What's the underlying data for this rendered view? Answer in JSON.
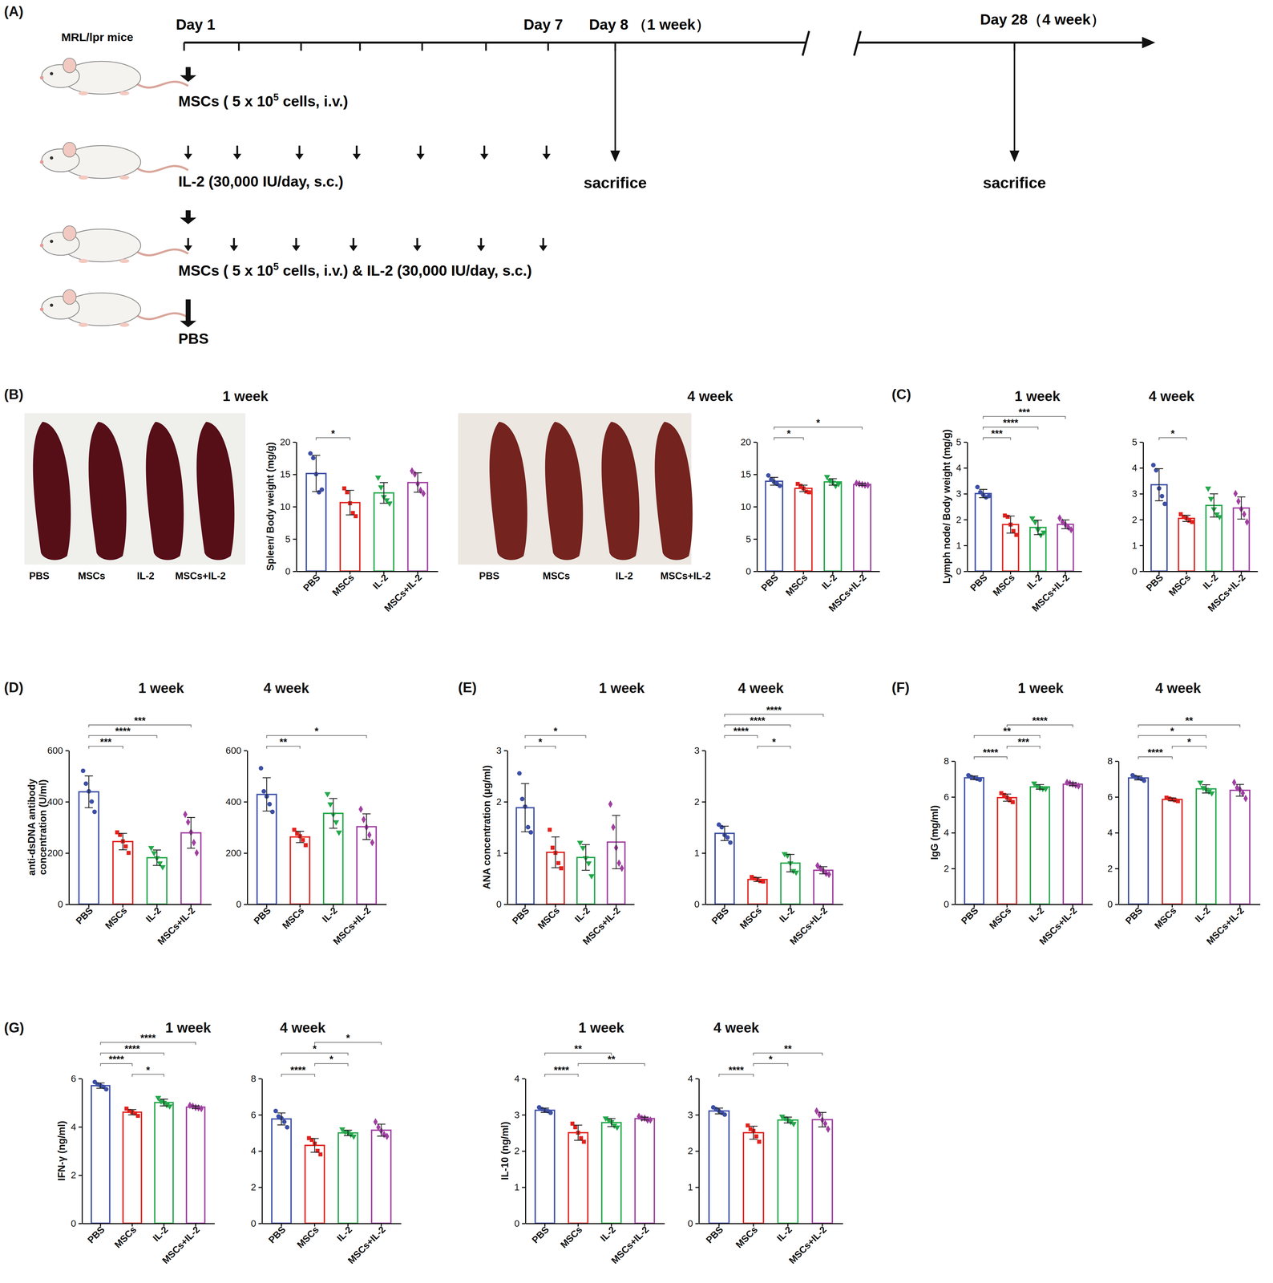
{
  "panel_labels": [
    "(A)",
    "(B)",
    "(C)",
    "(D)",
    "(E)",
    "(F)",
    "(G)"
  ],
  "diagram": {
    "subject": "MRL/lpr mice",
    "days": [
      "Day 1",
      "Day 7",
      "Day 8 （1 week）",
      "Day 28（4 week）"
    ],
    "treatments": [
      {
        "parts": [
          "MSCs ( 5 x 10",
          "5",
          " cells, i.v.)"
        ]
      },
      {
        "parts": [
          "IL-2 (30,000 IU/day, s.c.)"
        ]
      },
      {
        "parts": [
          "MSCs ( 5 x 10",
          "5",
          " cells, i.v.) & IL-2 (30,000 IU/day, s.c.)"
        ]
      },
      {
        "parts": [
          "PBS"
        ]
      }
    ],
    "endpoints": [
      "sacrifice",
      "sacrifice"
    ]
  },
  "photos": [
    {
      "labels": [
        "PBS",
        "MSCs",
        "IL-2",
        "MSCs+IL-2"
      ]
    },
    {
      "labels": [
        "PBS",
        "MSCs",
        "IL-2",
        "MSCs+IL-2"
      ]
    }
  ],
  "chart_data": [
    {
      "type": "bar",
      "title": "1 week",
      "ylabel": "Spleen/ Body weight (mg/g)",
      "categories": [
        "PBS",
        "MSCs",
        "IL-2",
        "MSCs+IL-2"
      ],
      "values": [
        15.1,
        10.6,
        12.1,
        13.7
      ],
      "errors": [
        2.8,
        1.9,
        1.6,
        1.5
      ],
      "points": [
        [
          18.2,
          17.5,
          15,
          12.2,
          12.6
        ],
        [
          12.8,
          12.2,
          10.5,
          9,
          8.5
        ],
        [
          14.5,
          13,
          11.5,
          11,
          10.5
        ],
        [
          15.5,
          15,
          13.5,
          12.5,
          12
        ]
      ],
      "significance": [
        {
          "from": 0,
          "to": 1,
          "label": "*"
        }
      ],
      "colors": [
        "#3d4fa6",
        "#e3211c",
        "#24a84b",
        "#a03fa1"
      ],
      "ylim": [
        0,
        20
      ],
      "yticks": [
        0,
        5,
        10,
        15,
        20
      ]
    },
    {
      "type": "bar",
      "title": "4 week",
      "categories": [
        "PBS",
        "MSCs",
        "IL-2",
        "MSCs+IL-2"
      ],
      "values": [
        13.9,
        12.8,
        13.8,
        13.4
      ],
      "errors": [
        0.6,
        0.5,
        0.5,
        0.15
      ],
      "points": [
        [
          14.8,
          14.2,
          13.8,
          13.5,
          13.2
        ],
        [
          13.5,
          13.2,
          12.8,
          12.3,
          12.2
        ],
        [
          14.6,
          14,
          13.7,
          13.2,
          13.5
        ],
        [
          13.6,
          13.5,
          13.4,
          13.3,
          13.3
        ]
      ],
      "significance": [
        {
          "from": 0,
          "to": 1,
          "label": "*"
        },
        {
          "from": 0,
          "to": 3,
          "label": "*"
        }
      ],
      "colors": [
        "#3d4fa6",
        "#e3211c",
        "#24a84b",
        "#a03fa1"
      ],
      "ylim": [
        0,
        20
      ],
      "yticks": [
        0,
        5,
        10,
        15,
        20
      ]
    },
    {
      "type": "bar",
      "title": "1 week",
      "ylabel": "Lymph node/ Body weight (mg/g)",
      "categories": [
        "PBS",
        "MSCs",
        "IL-2",
        "MSCs+IL-2"
      ],
      "values": [
        3.0,
        1.8,
        1.69,
        1.81
      ],
      "errors": [
        0.16,
        0.33,
        0.28,
        0.17
      ],
      "points": [
        [
          3.25,
          3.05,
          2.95,
          2.85,
          2.9
        ],
        [
          2.15,
          2.1,
          1.8,
          1.55,
          1.4
        ],
        [
          2.05,
          1.9,
          1.6,
          1.4,
          1.5
        ],
        [
          2.05,
          1.9,
          1.8,
          1.7,
          1.6
        ]
      ],
      "significance": [
        {
          "from": 0,
          "to": 1,
          "label": "***"
        },
        {
          "from": 0,
          "to": 2,
          "label": "****"
        },
        {
          "from": 0,
          "to": 3,
          "label": "***"
        }
      ],
      "colors": [
        "#3d4fa6",
        "#e3211c",
        "#24a84b",
        "#a03fa1"
      ],
      "ylim": [
        0,
        5
      ],
      "yticks": [
        0,
        1,
        2,
        3,
        4,
        5
      ]
    },
    {
      "type": "bar",
      "title": "4 week",
      "categories": [
        "PBS",
        "MSCs",
        "IL-2",
        "MSCs+IL-2"
      ],
      "values": [
        3.34,
        2.04,
        2.54,
        2.44
      ],
      "errors": [
        0.62,
        0.12,
        0.45,
        0.43
      ],
      "points": [
        [
          4.1,
          3.9,
          3.2,
          2.9,
          2.6
        ],
        [
          2.2,
          2.1,
          2.05,
          1.95,
          1.9
        ],
        [
          3.2,
          2.8,
          2.4,
          2.2,
          2.1
        ],
        [
          3.0,
          2.7,
          2.4,
          2.2,
          1.9
        ]
      ],
      "significance": [
        {
          "from": 0,
          "to": 1,
          "label": "*"
        }
      ],
      "colors": [
        "#3d4fa6",
        "#e3211c",
        "#24a84b",
        "#a03fa1"
      ],
      "ylim": [
        0,
        5
      ],
      "yticks": [
        0,
        1,
        2,
        3,
        4,
        5
      ]
    },
    {
      "type": "bar",
      "title": "1 week",
      "ylabel": "anti-dsDNA antibody\nconcentration (U/ml)",
      "categories": [
        "PBS",
        "MSCs",
        "IL-2",
        "MSCs+IL-2"
      ],
      "values": [
        438,
        244,
        181,
        278
      ],
      "errors": [
        62,
        32,
        30,
        60
      ],
      "points": [
        [
          520,
          470,
          440,
          400,
          360
        ],
        [
          280,
          270,
          245,
          225,
          200
        ],
        [
          220,
          200,
          180,
          160,
          145
        ],
        [
          350,
          320,
          280,
          240,
          200
        ]
      ],
      "significance": [
        {
          "from": 0,
          "to": 1,
          "label": "***"
        },
        {
          "from": 0,
          "to": 2,
          "label": "****"
        },
        {
          "from": 0,
          "to": 3,
          "label": "***"
        }
      ],
      "colors": [
        "#3d4fa6",
        "#e3211c",
        "#24a84b",
        "#a03fa1"
      ],
      "ylim": [
        0,
        600
      ],
      "yticks": [
        0,
        200,
        400,
        600
      ]
    },
    {
      "type": "bar",
      "title": "4 week",
      "categories": [
        "PBS",
        "MSCs",
        "IL-2",
        "MSCs+IL-2"
      ],
      "values": [
        428,
        262,
        354,
        302
      ],
      "errors": [
        65,
        22,
        58,
        50
      ],
      "points": [
        [
          530,
          440,
          420,
          390,
          360
        ],
        [
          290,
          275,
          265,
          250,
          230
        ],
        [
          430,
          390,
          350,
          320,
          280
        ],
        [
          370,
          330,
          300,
          270,
          240
        ]
      ],
      "significance": [
        {
          "from": 0,
          "to": 1,
          "label": "**"
        },
        {
          "from": 0,
          "to": 3,
          "label": "*"
        }
      ],
      "colors": [
        "#3d4fa6",
        "#e3211c",
        "#24a84b",
        "#a03fa1"
      ],
      "ylim": [
        0,
        600
      ],
      "yticks": [
        0,
        200,
        400,
        600
      ]
    },
    {
      "type": "bar",
      "title": "1 week",
      "ylabel": "ANA concentration (μg/ml)",
      "categories": [
        "PBS",
        "MSCs",
        "IL-2",
        "MSCs+IL-2"
      ],
      "values": [
        1.88,
        1.01,
        0.91,
        1.21
      ],
      "errors": [
        0.47,
        0.3,
        0.25,
        0.52
      ],
      "points": [
        [
          2.55,
          2.05,
          1.9,
          1.5,
          1.4
        ],
        [
          1.45,
          1.1,
          1.0,
          0.8,
          0.7
        ],
        [
          1.2,
          1.1,
          0.9,
          0.8,
          0.55
        ],
        [
          1.95,
          1.5,
          1.1,
          0.8,
          0.7
        ]
      ],
      "significance": [
        {
          "from": 0,
          "to": 1,
          "label": "*"
        },
        {
          "from": 0,
          "to": 2,
          "label": "*"
        }
      ],
      "colors": [
        "#3d4fa6",
        "#e3211c",
        "#24a84b",
        "#a03fa1"
      ],
      "ylim": [
        0,
        3
      ],
      "yticks": [
        0,
        1,
        2,
        3
      ]
    },
    {
      "type": "bar",
      "title": "4 week",
      "categories": [
        "PBS",
        "MSCs",
        "IL-2",
        "MSCs+IL-2"
      ],
      "values": [
        1.38,
        0.48,
        0.8,
        0.66
      ],
      "errors": [
        0.14,
        0.04,
        0.17,
        0.07
      ],
      "points": [
        [
          1.55,
          1.5,
          1.35,
          1.3,
          1.2
        ],
        [
          0.53,
          0.5,
          0.48,
          0.45,
          0.44
        ],
        [
          0.98,
          0.95,
          0.8,
          0.65,
          0.62
        ],
        [
          0.75,
          0.7,
          0.65,
          0.6,
          0.58
        ]
      ],
      "significance": [
        {
          "from": 1,
          "to": 2,
          "label": "*"
        },
        {
          "from": 0,
          "to": 1,
          "label": "****"
        },
        {
          "from": 0,
          "to": 2,
          "label": "****"
        },
        {
          "from": 0,
          "to": 3,
          "label": "****"
        }
      ],
      "colors": [
        "#3d4fa6",
        "#e3211c",
        "#24a84b",
        "#a03fa1"
      ],
      "ylim": [
        0,
        3
      ],
      "yticks": [
        0,
        1,
        2,
        3
      ]
    },
    {
      "type": "bar",
      "title": "1 week",
      "ylabel": "IgG (mg/ml)",
      "categories": [
        "PBS",
        "MSCs",
        "IL-2",
        "MSCs+IL-2"
      ],
      "values": [
        7.06,
        5.95,
        6.55,
        6.7
      ],
      "errors": [
        0.1,
        0.2,
        0.13,
        0.08
      ],
      "points": [
        [
          7.2,
          7.1,
          7.05,
          7.0,
          6.95
        ],
        [
          6.2,
          6.1,
          5.95,
          5.8,
          5.7
        ],
        [
          6.75,
          6.6,
          6.5,
          6.45,
          6.45
        ],
        [
          6.8,
          6.75,
          6.7,
          6.65,
          6.6
        ]
      ],
      "significance": [
        {
          "from": 0,
          "to": 1,
          "label": "****"
        },
        {
          "from": 1,
          "to": 2,
          "label": "***"
        },
        {
          "from": 0,
          "to": 2,
          "label": "**"
        },
        {
          "from": 1,
          "to": 3,
          "label": "****"
        }
      ],
      "colors": [
        "#3d4fa6",
        "#e3211c",
        "#24a84b",
        "#a03fa1"
      ],
      "ylim": [
        0,
        8
      ],
      "yticks": [
        0,
        2,
        4,
        6,
        8
      ]
    },
    {
      "type": "bar",
      "title": "4 week",
      "categories": [
        "PBS",
        "MSCs",
        "IL-2",
        "MSCs+IL-2"
      ],
      "values": [
        7.05,
        5.85,
        6.44,
        6.36
      ],
      "errors": [
        0.11,
        0.08,
        0.23,
        0.33
      ],
      "points": [
        [
          7.2,
          7.1,
          7.05,
          7.0,
          6.9
        ],
        [
          5.95,
          5.9,
          5.85,
          5.8,
          5.75
        ],
        [
          6.8,
          6.5,
          6.4,
          6.3,
          6.2
        ],
        [
          6.8,
          6.5,
          6.4,
          6.2,
          5.9
        ]
      ],
      "significance": [
        {
          "from": 0,
          "to": 1,
          "label": "****"
        },
        {
          "from": 1,
          "to": 2,
          "label": "*"
        },
        {
          "from": 0,
          "to": 2,
          "label": "*"
        },
        {
          "from": 0,
          "to": 3,
          "label": "**"
        }
      ],
      "colors": [
        "#3d4fa6",
        "#e3211c",
        "#24a84b",
        "#a03fa1"
      ],
      "ylim": [
        0,
        8
      ],
      "yticks": [
        0,
        2,
        4,
        6,
        8
      ]
    },
    {
      "type": "bar",
      "title": "1 week",
      "ylabel": "IFN-γ (ng/ml)",
      "categories": [
        "PBS",
        "MSCs",
        "IL-2",
        "MSCs+IL-2"
      ],
      "values": [
        5.7,
        4.6,
        5.0,
        4.81
      ],
      "errors": [
        0.11,
        0.11,
        0.14,
        0.05
      ],
      "points": [
        [
          5.85,
          5.75,
          5.7,
          5.65,
          5.55
        ],
        [
          4.75,
          4.65,
          4.6,
          4.55,
          4.45
        ],
        [
          5.2,
          5.05,
          5.0,
          4.9,
          4.85
        ],
        [
          4.88,
          4.85,
          4.8,
          4.78,
          4.75
        ]
      ],
      "significance": [
        {
          "from": 1,
          "to": 2,
          "label": "*"
        },
        {
          "from": 0,
          "to": 1,
          "label": "****"
        },
        {
          "from": 0,
          "to": 2,
          "label": "****"
        },
        {
          "from": 0,
          "to": 3,
          "label": "****"
        }
      ],
      "colors": [
        "#3d4fa6",
        "#e3211c",
        "#24a84b",
        "#a03fa1"
      ],
      "ylim": [
        0,
        6
      ],
      "yticks": [
        0,
        2,
        4,
        6
      ]
    },
    {
      "type": "bar",
      "title": "4 week",
      "categories": [
        "PBS",
        "MSCs",
        "IL-2",
        "MSCs+IL-2"
      ],
      "values": [
        5.76,
        4.3,
        4.99,
        5.14
      ],
      "errors": [
        0.33,
        0.38,
        0.15,
        0.33
      ],
      "points": [
        [
          6.2,
          5.9,
          5.8,
          5.6,
          5.3
        ],
        [
          4.7,
          4.6,
          4.4,
          4.0,
          3.8
        ],
        [
          5.2,
          5.05,
          5.0,
          4.9,
          4.8
        ],
        [
          5.6,
          5.3,
          5.1,
          4.9,
          4.8
        ]
      ],
      "significance": [
        {
          "from": 0,
          "to": 1,
          "label": "****"
        },
        {
          "from": 1,
          "to": 2,
          "label": "*"
        },
        {
          "from": 0,
          "to": 2,
          "label": "*"
        },
        {
          "from": 1,
          "to": 3,
          "label": "*"
        }
      ],
      "colors": [
        "#3d4fa6",
        "#e3211c",
        "#24a84b",
        "#a03fa1"
      ],
      "ylim": [
        0,
        8
      ],
      "yticks": [
        0,
        2,
        4,
        6,
        8
      ]
    },
    {
      "type": "bar",
      "title": "1 week",
      "ylabel": "IL-10 (ng/ml)",
      "categories": [
        "PBS",
        "MSCs",
        "IL-2",
        "MSCs+IL-2"
      ],
      "values": [
        3.12,
        2.5,
        2.78,
        2.89
      ],
      "errors": [
        0.06,
        0.21,
        0.11,
        0.04
      ],
      "points": [
        [
          3.2,
          3.15,
          3.12,
          3.1,
          3.05
        ],
        [
          2.75,
          2.65,
          2.5,
          2.35,
          2.25
        ],
        [
          2.9,
          2.85,
          2.8,
          2.7,
          2.65
        ],
        [
          2.95,
          2.9,
          2.9,
          2.85,
          2.85
        ]
      ],
      "significance": [
        {
          "from": 0,
          "to": 1,
          "label": "****"
        },
        {
          "from": 1,
          "to": 3,
          "label": "**"
        },
        {
          "from": 0,
          "to": 2,
          "label": "**"
        }
      ],
      "colors": [
        "#3d4fa6",
        "#e3211c",
        "#24a84b",
        "#a03fa1"
      ],
      "ylim": [
        0,
        4
      ],
      "yticks": [
        0,
        1,
        2,
        3,
        4
      ]
    },
    {
      "type": "bar",
      "title": "4 week",
      "categories": [
        "PBS",
        "MSCs",
        "IL-2",
        "MSCs+IL-2"
      ],
      "values": [
        3.1,
        2.5,
        2.85,
        2.86
      ],
      "errors": [
        0.08,
        0.18,
        0.08,
        0.2
      ],
      "points": [
        [
          3.2,
          3.15,
          3.1,
          3.05,
          3.0
        ],
        [
          2.7,
          2.6,
          2.55,
          2.4,
          2.25
        ],
        [
          2.95,
          2.9,
          2.85,
          2.8,
          2.75
        ],
        [
          3.1,
          3.0,
          2.85,
          2.75,
          2.6
        ]
      ],
      "significance": [
        {
          "from": 0,
          "to": 1,
          "label": "****"
        },
        {
          "from": 1,
          "to": 2,
          "label": "*"
        },
        {
          "from": 1,
          "to": 3,
          "label": "**"
        }
      ],
      "colors": [
        "#3d4fa6",
        "#e3211c",
        "#24a84b",
        "#a03fa1"
      ],
      "ylim": [
        0,
        4
      ],
      "yticks": [
        0,
        1,
        2,
        3,
        4
      ]
    }
  ]
}
